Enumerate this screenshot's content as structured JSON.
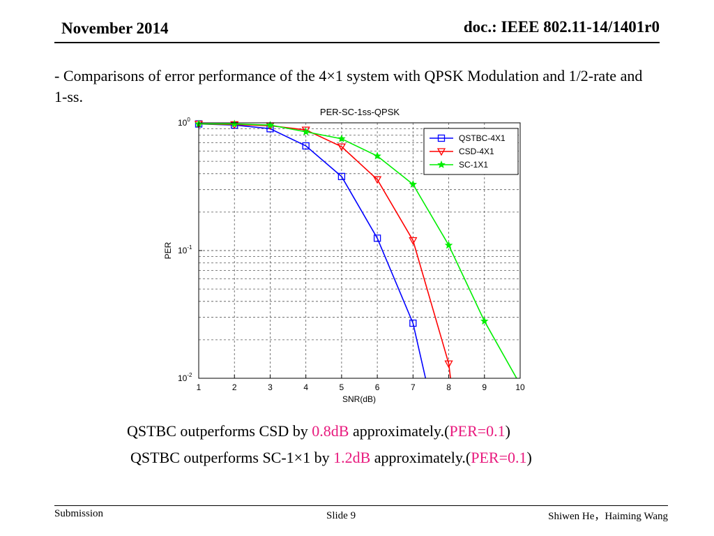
{
  "header": {
    "date": "November 2014",
    "doc": "doc.: IEEE 802.11-14/1401r0"
  },
  "intro": "-  Comparisons of error performance of the 4×1 system with QPSK Modulation and 1/2-rate and 1-ss.",
  "results": {
    "line1": {
      "before": "QSTBC outperforms CSD by ",
      "gain": "0.8dB",
      "middle": " approximately.(",
      "per": "PER=0.1",
      "after": ")"
    },
    "line2": {
      "before": "QSTBC outperforms SC-1×1 by ",
      "gain": "1.2dB",
      "middle": " approximately.(",
      "per": "PER=0.1",
      "after": ")"
    }
  },
  "footer": {
    "left": "Submission",
    "center": "Slide 9",
    "right": "Shiwen He，Haiming Wang"
  },
  "colors": {
    "highlight": "#e8197d"
  },
  "chart_data": {
    "type": "line",
    "title": "PER-SC-1ss-QPSK",
    "xlabel": "SNR(dB)",
    "ylabel": "PER",
    "yscale": "log",
    "xlim": [
      1,
      10
    ],
    "ylim": [
      0.01,
      1
    ],
    "xticks": [
      1,
      2,
      3,
      4,
      5,
      6,
      7,
      8,
      9,
      10
    ],
    "yticks": [
      {
        "value": 1,
        "base": "10",
        "exp": "0"
      },
      {
        "value": 0.1,
        "base": "10",
        "exp": "-1"
      },
      {
        "value": 0.01,
        "base": "10",
        "exp": "-2"
      }
    ],
    "grid": true,
    "legend": "top-right",
    "series": [
      {
        "name": "QSTBC-4X1",
        "color": "#0000ff",
        "marker": "square",
        "x": [
          1,
          2,
          3,
          4,
          5,
          6,
          7,
          7.35
        ],
        "y": [
          0.98,
          0.96,
          0.9,
          0.66,
          0.38,
          0.125,
          0.027,
          0.01
        ]
      },
      {
        "name": "CSD-4X1",
        "color": "#ff0000",
        "marker": "triangle-down",
        "x": [
          1,
          2,
          3,
          4,
          5,
          6,
          7,
          8,
          8.05
        ],
        "y": [
          0.98,
          0.97,
          0.95,
          0.88,
          0.65,
          0.36,
          0.12,
          0.013,
          0.01
        ]
      },
      {
        "name": "SC-1X1",
        "color": "#00ee00",
        "marker": "star",
        "x": [
          1,
          2,
          3,
          4,
          5,
          6,
          7,
          8,
          9,
          9.9
        ],
        "y": [
          0.98,
          0.98,
          0.96,
          0.85,
          0.75,
          0.55,
          0.33,
          0.11,
          0.028,
          0.01
        ]
      }
    ]
  }
}
